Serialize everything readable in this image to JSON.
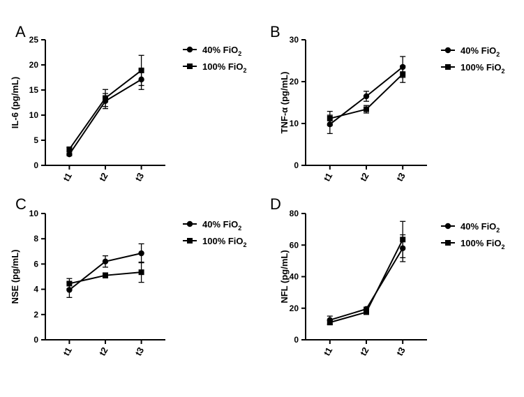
{
  "figure": {
    "legend_position": "right",
    "series_styles": [
      {
        "name": "40% FiO2",
        "marker": "circle",
        "color": "#000000"
      },
      {
        "name": "100% FiO2",
        "marker": "square",
        "color": "#000000"
      }
    ]
  },
  "chart_data": [
    {
      "panel": "A",
      "type": "line",
      "categories": [
        "t1",
        "t2",
        "t3"
      ],
      "ylabel": "IL-6 (pg/mL)",
      "ylim": [
        0,
        25
      ],
      "yticks": [
        0,
        5,
        10,
        15,
        20,
        25
      ],
      "series": [
        {
          "name": "40% FiO",
          "sub": "2",
          "marker": "circle",
          "values": [
            2.2,
            12.8,
            17.1
          ],
          "errors": [
            0.3,
            1.5,
            2.0
          ]
        },
        {
          "name": "100% FiO",
          "sub": "2",
          "marker": "square",
          "values": [
            3.2,
            13.4,
            18.9
          ],
          "errors": [
            0.4,
            1.7,
            3.0
          ]
        }
      ]
    },
    {
      "panel": "B",
      "type": "line",
      "categories": [
        "t1",
        "t2",
        "t3"
      ],
      "ylabel": "TNF-α (pg/mL)",
      "ylim": [
        0,
        30
      ],
      "yticks": [
        0,
        10,
        20,
        30
      ],
      "series": [
        {
          "name": "40% FiO",
          "sub": "2",
          "marker": "circle",
          "values": [
            9.8,
            16.5,
            23.5
          ],
          "errors": [
            2.2,
            1.2,
            2.5
          ]
        },
        {
          "name": "100% FiO",
          "sub": "2",
          "marker": "square",
          "values": [
            11.2,
            13.4,
            21.8
          ],
          "errors": [
            1.7,
            0.9,
            2.0
          ]
        }
      ]
    },
    {
      "panel": "C",
      "type": "line",
      "categories": [
        "t1",
        "t2",
        "t3"
      ],
      "ylabel": "NSE (pg/mL)",
      "ylim": [
        0,
        10
      ],
      "yticks": [
        0,
        2,
        4,
        6,
        8,
        10
      ],
      "series": [
        {
          "name": "40% FiO",
          "sub": "2",
          "marker": "circle",
          "values": [
            3.95,
            6.2,
            6.85
          ],
          "errors": [
            0.6,
            0.45,
            0.75
          ]
        },
        {
          "name": "100% FiO",
          "sub": "2",
          "marker": "square",
          "values": [
            4.45,
            5.1,
            5.35
          ],
          "errors": [
            0.4,
            0.2,
            0.8
          ]
        }
      ]
    },
    {
      "panel": "D",
      "type": "line",
      "categories": [
        "t1",
        "t2",
        "t3"
      ],
      "ylabel": "NFL (pg/mL)",
      "ylim": [
        0,
        80
      ],
      "yticks": [
        0,
        20,
        40,
        60,
        80
      ],
      "series": [
        {
          "name": "40% FiO",
          "sub": "2",
          "marker": "circle",
          "values": [
            12.5,
            19.5,
            58
          ],
          "errors": [
            2.5,
            1.2,
            8.5
          ]
        },
        {
          "name": "100% FiO",
          "sub": "2",
          "marker": "square",
          "values": [
            11.0,
            17.5,
            63.5
          ],
          "errors": [
            1.5,
            1.0,
            11.5
          ]
        }
      ]
    }
  ]
}
